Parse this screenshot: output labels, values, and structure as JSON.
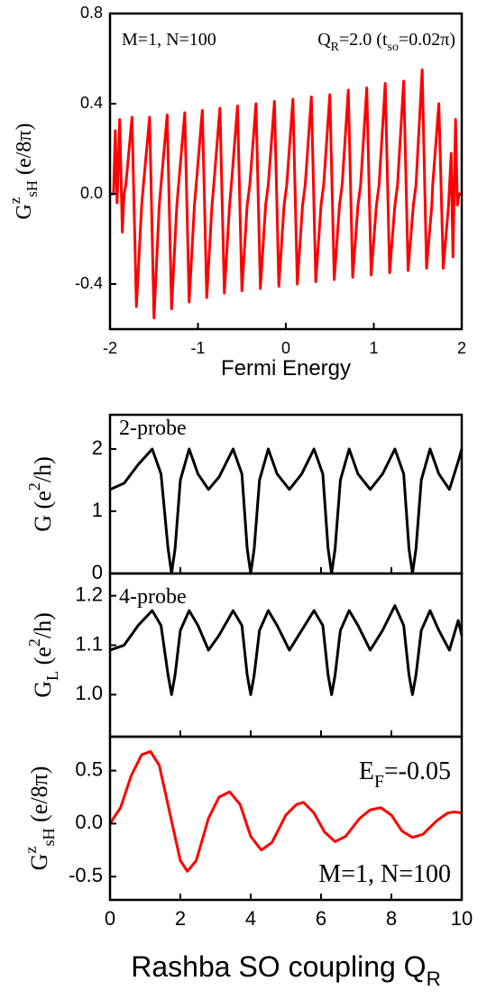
{
  "chart_data": [
    {
      "type": "line",
      "ylabel": [
        {
          "text": "G"
        },
        {
          "text": "z",
          "sup": true
        },
        {
          "text": "sH",
          "sub": true
        },
        {
          "text": " (e/8π)"
        }
      ],
      "xlabel": [
        {
          "text": "Fermi Energy"
        }
      ],
      "annotations": [
        [
          {
            "text": "M=1, N=100"
          }
        ],
        [
          {
            "text": "Q"
          },
          {
            "text": "R",
            "sub": true
          },
          {
            "text": "=2.0 (t"
          },
          {
            "text": "so",
            "sub": true
          },
          {
            "text": "=0.02π)"
          }
        ]
      ],
      "xlim": [
        -2,
        2
      ],
      "xticks": [
        -2,
        -1,
        0,
        1,
        2
      ],
      "xtick_labels": true,
      "ylim": [
        -0.6,
        0.8
      ],
      "yticks": [
        {
          "value": -0.4,
          "label": "-0.4"
        },
        {
          "value": 0,
          "label": "0.0"
        },
        0.4,
        0.8
      ],
      "x": [
        -2.0,
        -1.96,
        -1.94,
        -1.92,
        -1.89,
        -1.86,
        -1.84,
        -1.82,
        -1.75,
        -1.7,
        -1.64,
        -1.62,
        -1.55,
        -1.5,
        -1.44,
        -1.42,
        -1.35,
        -1.3,
        -1.24,
        -1.22,
        -1.15,
        -1.1,
        -1.04,
        -1.02,
        -0.95,
        -0.9,
        -0.84,
        -0.82,
        -0.75,
        -0.7,
        -0.64,
        -0.62,
        -0.55,
        -0.5,
        -0.44,
        -0.41,
        -0.34,
        -0.29,
        -0.23,
        -0.2,
        -0.13,
        -0.08,
        -0.02,
        0.01,
        0.08,
        0.13,
        0.19,
        0.22,
        0.29,
        0.34,
        0.4,
        0.43,
        0.5,
        0.55,
        0.61,
        0.64,
        0.71,
        0.76,
        0.82,
        0.85,
        0.92,
        0.97,
        1.03,
        1.06,
        1.13,
        1.18,
        1.24,
        1.27,
        1.34,
        1.39,
        1.45,
        1.48,
        1.55,
        1.6,
        1.66,
        1.67,
        1.74,
        1.79,
        1.85,
        1.88,
        1.9,
        1.93,
        1.95,
        1.97,
        2.0
      ],
      "series": [
        {
          "color": "#ff0000",
          "values": [
            0.0,
            0.0,
            0.28,
            -0.04,
            0.33,
            -0.17,
            0.0,
            0.04,
            0.34,
            -0.5,
            -0.05,
            0.04,
            0.34,
            -0.55,
            -0.05,
            0.04,
            0.35,
            -0.51,
            -0.05,
            0.04,
            0.36,
            -0.48,
            -0.05,
            0.04,
            0.37,
            -0.46,
            -0.05,
            0.04,
            0.38,
            -0.44,
            -0.05,
            0.04,
            0.39,
            -0.43,
            -0.05,
            0.04,
            0.4,
            -0.42,
            -0.05,
            0.04,
            0.41,
            -0.41,
            -0.05,
            0.04,
            0.42,
            -0.4,
            -0.05,
            0.04,
            0.43,
            -0.39,
            -0.05,
            0.04,
            0.44,
            -0.38,
            -0.05,
            0.04,
            0.46,
            -0.37,
            -0.05,
            0.04,
            0.47,
            -0.36,
            -0.05,
            0.04,
            0.49,
            -0.35,
            -0.05,
            0.04,
            0.5,
            -0.34,
            -0.05,
            0.04,
            0.55,
            -0.33,
            -0.05,
            0.04,
            0.4,
            -0.33,
            -0.05,
            0.18,
            -0.28,
            0.33,
            -0.05,
            0.0,
            0.0
          ]
        }
      ]
    },
    {
      "type": "line",
      "ylabel": [
        {
          "text": "G (e"
        },
        {
          "text": "2",
          "sup": true
        },
        {
          "text": "/h)"
        }
      ],
      "annotations": [
        [
          {
            "text": "2-probe"
          }
        ]
      ],
      "xlim": [
        0,
        10
      ],
      "xticks": [
        0,
        2,
        4,
        6,
        8,
        10
      ],
      "xtick_labels": false,
      "ylim": [
        0,
        2.55
      ],
      "yticks": [
        0,
        1,
        2
      ],
      "x": [
        0,
        0.4,
        0.8,
        1.2,
        1.45,
        1.65,
        1.75,
        1.85,
        2.0,
        2.25,
        2.5,
        2.8,
        3.1,
        3.5,
        3.75,
        3.9,
        4.0,
        4.1,
        4.25,
        4.5,
        4.75,
        5.1,
        5.45,
        5.8,
        6.05,
        6.2,
        6.3,
        6.4,
        6.55,
        6.8,
        7.05,
        7.4,
        7.75,
        8.1,
        8.35,
        8.5,
        8.6,
        8.7,
        8.85,
        9.1,
        9.35,
        9.65,
        9.9,
        10
      ],
      "series": [
        {
          "color": "#000000",
          "values": [
            1.35,
            1.45,
            1.75,
            2.0,
            1.6,
            0.4,
            0.0,
            0.4,
            1.5,
            2.0,
            1.6,
            1.35,
            1.55,
            2.0,
            1.6,
            0.4,
            0.0,
            0.4,
            1.5,
            2.0,
            1.6,
            1.35,
            1.6,
            2.0,
            1.6,
            0.4,
            0.0,
            0.4,
            1.5,
            2.0,
            1.6,
            1.35,
            1.6,
            2.0,
            1.6,
            0.4,
            0.0,
            0.4,
            1.5,
            2.0,
            1.6,
            1.35,
            1.8,
            2.0
          ]
        }
      ]
    },
    {
      "type": "line",
      "ylabel": [
        {
          "text": "G"
        },
        {
          "text": "L",
          "sub": true
        },
        {
          "text": " (e"
        },
        {
          "text": "2",
          "sup": true
        },
        {
          "text": "/h)"
        }
      ],
      "annotations": [
        [
          {
            "text": "4-probe"
          }
        ]
      ],
      "xlim": [
        0,
        10
      ],
      "xticks": [
        0,
        2,
        4,
        6,
        8,
        10
      ],
      "xtick_labels": false,
      "ylim": [
        0.915,
        1.245
      ],
      "yticks": [
        {
          "value": 1,
          "label": "1.0"
        },
        1.1,
        1.2
      ],
      "x": [
        0,
        0.4,
        0.8,
        1.2,
        1.45,
        1.65,
        1.75,
        1.85,
        2.0,
        2.25,
        2.5,
        2.8,
        3.1,
        3.5,
        3.75,
        3.9,
        4.0,
        4.1,
        4.25,
        4.5,
        4.75,
        5.1,
        5.45,
        5.8,
        6.05,
        6.2,
        6.3,
        6.4,
        6.55,
        6.8,
        7.05,
        7.4,
        7.75,
        8.1,
        8.35,
        8.5,
        8.6,
        8.7,
        8.85,
        9.1,
        9.35,
        9.65,
        9.9,
        10
      ],
      "series": [
        {
          "color": "#000000",
          "values": [
            1.09,
            1.1,
            1.14,
            1.17,
            1.14,
            1.04,
            1.0,
            1.04,
            1.13,
            1.17,
            1.14,
            1.09,
            1.12,
            1.17,
            1.14,
            1.04,
            1.0,
            1.04,
            1.13,
            1.17,
            1.14,
            1.09,
            1.13,
            1.17,
            1.14,
            1.04,
            1.0,
            1.04,
            1.13,
            1.17,
            1.14,
            1.09,
            1.13,
            1.18,
            1.14,
            1.04,
            1.0,
            1.04,
            1.13,
            1.17,
            1.13,
            1.09,
            1.15,
            1.12
          ]
        }
      ]
    },
    {
      "type": "line",
      "ylabel": [
        {
          "text": "G"
        },
        {
          "text": "z",
          "sup": true
        },
        {
          "text": "sH",
          "sub": true
        },
        {
          "text": " (e/8π)"
        }
      ],
      "xlabel": [
        {
          "text": "Rashba SO coupling Q"
        },
        {
          "text": "R",
          "sub": true
        }
      ],
      "annotations": [
        [
          {
            "text": "E"
          },
          {
            "text": "F",
            "sub": true
          },
          {
            "text": "=-0.05"
          }
        ],
        [
          {
            "text": "M=1, N=100"
          }
        ]
      ],
      "xlim": [
        0,
        10
      ],
      "xticks": [
        0,
        2,
        4,
        6,
        8,
        10
      ],
      "xtick_labels": true,
      "ylim": [
        -0.72,
        0.82
      ],
      "yticks": [
        -0.5,
        {
          "value": 0,
          "label": "0.0"
        },
        0.5
      ],
      "x": [
        0,
        0.3,
        0.6,
        0.9,
        1.15,
        1.4,
        1.7,
        2.0,
        2.2,
        2.45,
        2.8,
        3.1,
        3.4,
        3.7,
        4.0,
        4.3,
        4.6,
        5.0,
        5.3,
        5.5,
        5.8,
        6.1,
        6.4,
        6.7,
        7.1,
        7.4,
        7.7,
        8.0,
        8.3,
        8.6,
        8.9,
        9.3,
        9.6,
        9.8,
        10
      ],
      "series": [
        {
          "color": "#ff0000",
          "values": [
            0,
            0.15,
            0.45,
            0.65,
            0.68,
            0.55,
            0.1,
            -0.35,
            -0.45,
            -0.35,
            0.05,
            0.25,
            0.3,
            0.18,
            -0.12,
            -0.25,
            -0.18,
            0.08,
            0.18,
            0.2,
            0.1,
            -0.08,
            -0.17,
            -0.12,
            0.05,
            0.13,
            0.15,
            0.08,
            -0.07,
            -0.13,
            -0.1,
            0.03,
            0.1,
            0.11,
            0.1
          ]
        }
      ]
    }
  ]
}
